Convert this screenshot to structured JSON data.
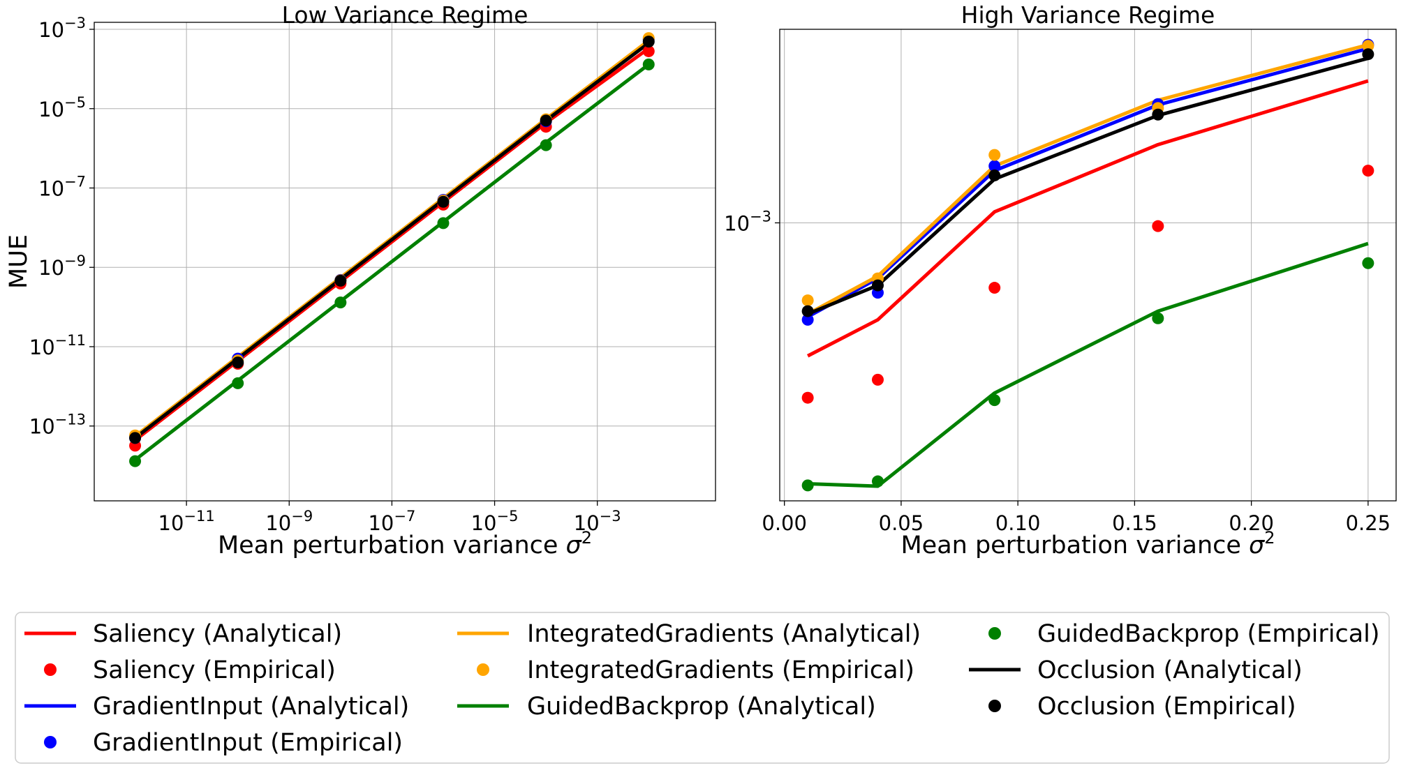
{
  "chart_data": [
    {
      "type": "line",
      "title": "Low Variance Regime",
      "xlabel": "Mean perturbation variance",
      "xlabel_symbol": "σ",
      "xlabel_sup": "2",
      "ylabel": "MUE",
      "xscale": "log",
      "yscale": "log",
      "xlim": [
        1.6e-13,
        0.2
      ],
      "ylim": [
        1.3e-15,
        0.0015
      ],
      "grid": true,
      "x_ticks": [
        {
          "value": 1e-11,
          "base": "10",
          "exp": "−11"
        },
        {
          "value": 1e-09,
          "base": "10",
          "exp": "−9"
        },
        {
          "value": 1e-07,
          "base": "10",
          "exp": "−7"
        },
        {
          "value": 1e-05,
          "base": "10",
          "exp": "−5"
        },
        {
          "value": 0.001,
          "base": "10",
          "exp": "−3"
        }
      ],
      "y_ticks": [
        {
          "value": 1e-13,
          "base": "10",
          "exp": "−13"
        },
        {
          "value": 1e-11,
          "base": "10",
          "exp": "−11"
        },
        {
          "value": 1e-09,
          "base": "10",
          "exp": "−9"
        },
        {
          "value": 1e-07,
          "base": "10",
          "exp": "−7"
        },
        {
          "value": 1e-05,
          "base": "10",
          "exp": "−5"
        },
        {
          "value": 0.001,
          "base": "10",
          "exp": "−3"
        }
      ],
      "x": [
        1e-12,
        1e-10,
        1e-08,
        1e-06,
        0.0001,
        0.01
      ],
      "series": [
        {
          "method": "Saliency",
          "color": "#ff0000",
          "analytical": [
            4.4e-14,
            4.4e-12,
            4.4e-10,
            4.4e-08,
            4.4e-06,
            0.00033
          ],
          "empirical": [
            3.2e-14,
            3.7e-12,
            3.9e-10,
            3.8e-08,
            3.5e-06,
            0.00028
          ]
        },
        {
          "method": "GradientInput",
          "color": "#0000ff",
          "analytical": [
            5.2e-14,
            5.2e-12,
            5.2e-10,
            5.2e-08,
            5.2e-06,
            0.00049
          ],
          "empirical": [
            5e-14,
            5e-12,
            4.8e-10,
            5e-08,
            4.8e-06,
            0.00056
          ]
        },
        {
          "method": "IntegratedGradients",
          "color": "#ffa500",
          "analytical": [
            5.5e-14,
            5.5e-12,
            5.5e-10,
            5.5e-08,
            5.5e-06,
            0.00052
          ],
          "empirical": [
            5.8e-14,
            4.5e-12,
            4.7e-10,
            4.8e-08,
            5.4e-06,
            0.0006
          ]
        },
        {
          "method": "GuidedBackprop",
          "color": "#008000",
          "analytical": [
            1.4e-14,
            1.4e-12,
            1.4e-10,
            1.4e-08,
            1.4e-06,
            0.00013
          ],
          "empirical": [
            1.3e-14,
            1.2e-12,
            1.3e-10,
            1.3e-08,
            1.2e-06,
            0.00013
          ]
        },
        {
          "method": "Occlusion",
          "color": "#000000",
          "analytical": [
            5e-14,
            5e-12,
            5e-10,
            5e-08,
            5e-06,
            0.00045
          ],
          "empirical": [
            5e-14,
            4e-12,
            4.6e-10,
            4.5e-08,
            5e-06,
            0.00049
          ]
        }
      ]
    },
    {
      "type": "line",
      "title": "High Variance Regime",
      "xlabel": "Mean perturbation variance",
      "xlabel_symbol": "σ",
      "xlabel_sup": "2",
      "xscale": "linear",
      "yscale": "log",
      "xlim": [
        -0.002,
        0.262
      ],
      "ylim": [
        0.00018,
        0.0033
      ],
      "grid": true,
      "x_ticks": [
        {
          "value": 0.0,
          "label": "0.00"
        },
        {
          "value": 0.05,
          "label": "0.05"
        },
        {
          "value": 0.1,
          "label": "0.10"
        },
        {
          "value": 0.15,
          "label": "0.15"
        },
        {
          "value": 0.2,
          "label": "0.20"
        },
        {
          "value": 0.25,
          "label": "0.25"
        }
      ],
      "y_ticks": [
        {
          "value": 0.001,
          "base": "10",
          "exp": "−3"
        }
      ],
      "x": [
        0.01,
        0.04,
        0.09,
        0.16,
        0.25
      ],
      "series": [
        {
          "method": "Saliency",
          "color": "#ff0000",
          "analytical": [
            0.00044,
            0.00055,
            0.00107,
            0.00162,
            0.0024
          ],
          "empirical": [
            0.00034,
            0.00038,
            0.00067,
            0.00098,
            0.00138
          ]
        },
        {
          "method": "GradientInput",
          "color": "#0000ff",
          "analytical": [
            0.00056,
            0.00071,
            0.00138,
            0.00207,
            0.00293
          ],
          "empirical": [
            0.00055,
            0.00065,
            0.00142,
            0.00208,
            0.003
          ]
        },
        {
          "method": "IntegratedGradients",
          "color": "#ffa500",
          "analytical": [
            0.00057,
            0.00072,
            0.00142,
            0.00213,
            0.003
          ],
          "empirical": [
            0.00062,
            0.00071,
            0.00152,
            0.00203,
            0.00298
          ]
        },
        {
          "method": "GuidedBackprop",
          "color": "#008000",
          "analytical": [
            0.0002,
            0.000197,
            0.00035,
            0.00058,
            0.00088
          ],
          "empirical": [
            0.000198,
            0.000203,
            0.000335,
            0.000555,
            0.00078
          ]
        },
        {
          "method": "Occlusion",
          "color": "#000000",
          "analytical": [
            0.00057,
            0.00068,
            0.00131,
            0.00194,
            0.00276
          ],
          "empirical": [
            0.00058,
            0.00068,
            0.00134,
            0.00195,
            0.00283
          ]
        }
      ]
    }
  ],
  "legend": {
    "placement": "bottom",
    "entries": [
      {
        "label": "Saliency (Analytical)",
        "color": "#ff0000",
        "kind": "line"
      },
      {
        "label": "Saliency (Empirical)",
        "color": "#ff0000",
        "kind": "marker"
      },
      {
        "label": "GradientInput (Analytical)",
        "color": "#0000ff",
        "kind": "line"
      },
      {
        "label": "GradientInput (Empirical)",
        "color": "#0000ff",
        "kind": "marker"
      },
      {
        "label": "IntegratedGradients (Analytical)",
        "color": "#ffa500",
        "kind": "line"
      },
      {
        "label": "IntegratedGradients (Empirical)",
        "color": "#ffa500",
        "kind": "marker"
      },
      {
        "label": "GuidedBackprop (Analytical)",
        "color": "#008000",
        "kind": "line"
      },
      {
        "label": "GuidedBackprop (Empirical)",
        "color": "#008000",
        "kind": "marker"
      },
      {
        "label": "Occlusion (Analytical)",
        "color": "#000000",
        "kind": "line"
      },
      {
        "label": "Occlusion (Empirical)",
        "color": "#000000",
        "kind": "marker"
      }
    ]
  }
}
